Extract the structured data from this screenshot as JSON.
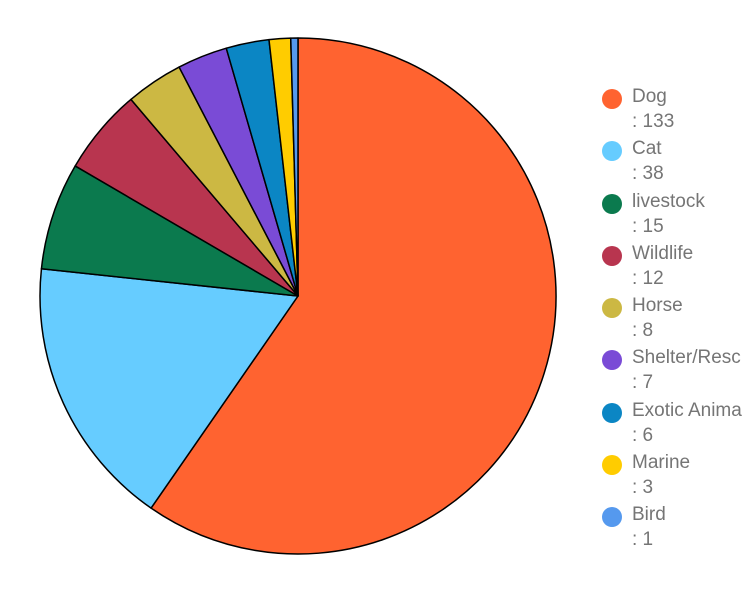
{
  "chart_data": {
    "type": "pie",
    "categories": [
      "Dog",
      "Cat",
      "livestock",
      "Wildlife",
      "Horse",
      "Shelter/Resc",
      "Exotic Anima",
      "Marine",
      "Bird"
    ],
    "values": [
      133,
      38,
      15,
      12,
      8,
      7,
      6,
      3,
      1
    ],
    "value_labels": [
      ": 133",
      ": 38",
      ": 15",
      ": 12",
      ": 8",
      ": 7",
      ": 6",
      ": 3",
      ": 1"
    ],
    "colors": [
      "#FF6330",
      "#66CCFF",
      "#0B7A4E",
      "#B8354F",
      "#CCB843",
      "#7A4BD6",
      "#0B86C4",
      "#FFCC00",
      "#5599EE"
    ],
    "title": "",
    "legend_position": "right",
    "start_angle_deg": 0,
    "direction": "clockwise"
  }
}
